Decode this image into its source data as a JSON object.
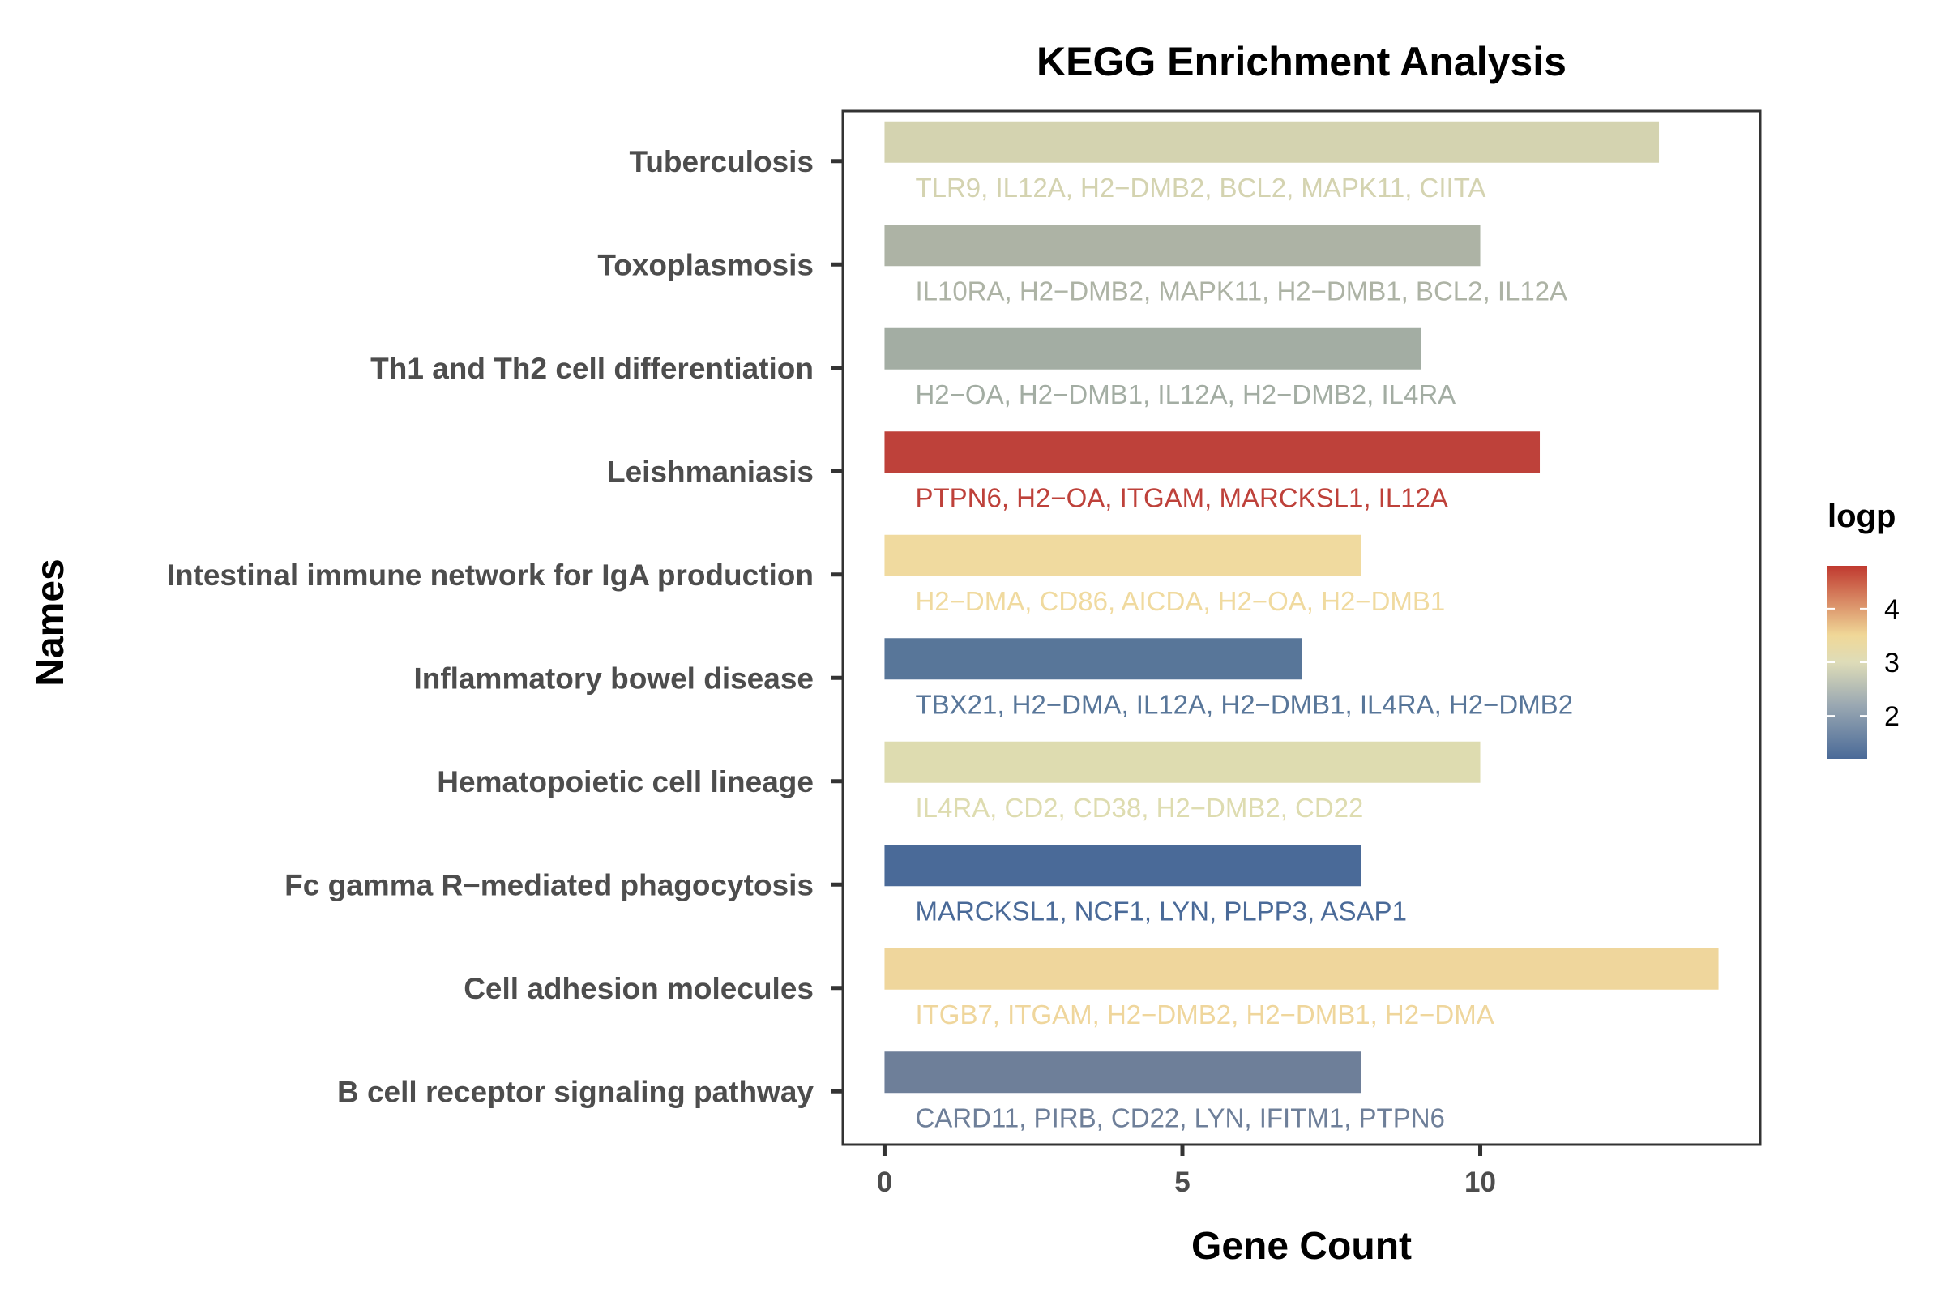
{
  "chart_data": {
    "type": "bar",
    "orientation": "horizontal",
    "title": "KEGG Enrichment Analysis",
    "xlabel": "Gene Count",
    "ylabel": "Names",
    "xlim": [
      -0.7,
      14.7
    ],
    "x_ticks": [
      0,
      5,
      10
    ],
    "grid": false,
    "legend": {
      "title": "logp",
      "position": "right",
      "range": [
        1.2,
        4.8
      ],
      "ticks": [
        2,
        3,
        4
      ],
      "stops": [
        {
          "value": 1.2,
          "color": "#4a6a98"
        },
        {
          "value": 2.2,
          "color": "#9aa8b2"
        },
        {
          "value": 3.0,
          "color": "#dedcb8"
        },
        {
          "value": 3.5,
          "color": "#f0d898"
        },
        {
          "value": 4.8,
          "color": "#c0392f"
        }
      ]
    },
    "bars": [
      {
        "name": "Tuberculosis",
        "value": 13,
        "logp": 3.1,
        "color": "#d4d3b0",
        "genes": "TLR9, IL12A, H2−DMB2, BCL2, MAPK11, CIITA"
      },
      {
        "name": "Toxoplasmosis",
        "value": 10,
        "logp": 2.5,
        "color": "#adb3a5",
        "genes": "IL10RA, H2−DMB2, MAPK11, H2−DMB1, BCL2, IL12A"
      },
      {
        "name": "Th1 and Th2 cell differentiation",
        "value": 9,
        "logp": 2.45,
        "color": "#a3ada3",
        "genes": "H2−OA, H2−DMB1, IL12A, H2−DMB2, IL4RA"
      },
      {
        "name": "Leishmaniasis",
        "value": 11,
        "logp": 4.8,
        "color": "#be413a",
        "genes": "PTPN6, H2−OA, ITGAM, MARCKSL1, IL12A"
      },
      {
        "name": "Intestinal immune network for IgA production",
        "value": 8,
        "logp": 3.4,
        "color": "#f0da9f",
        "genes": "H2−DMA, CD86, AICDA, H2−OA, H2−DMB1"
      },
      {
        "name": "Inflammatory bowel disease",
        "value": 7,
        "logp": 1.3,
        "color": "#587699",
        "genes": "TBX21, H2−DMA, IL12A, H2−DMB1, IL4RA, H2−DMB2"
      },
      {
        "name": "Hematopoietic cell lineage",
        "value": 10,
        "logp": 3.0,
        "color": "#dedcb0",
        "genes": "IL4RA, CD2, CD38, H2−DMB2, CD22"
      },
      {
        "name": "Fc gamma R−mediated phagocytosis",
        "value": 8,
        "logp": 1.2,
        "color": "#4a6a98",
        "genes": "MARCKSL1, NCF1, LYN, PLPP3, ASAP1"
      },
      {
        "name": "Cell adhesion molecules",
        "value": 14,
        "logp": 3.4,
        "color": "#efd69c",
        "genes": "ITGB7, ITGAM, H2−DMB2, H2−DMB1, H2−DMA"
      },
      {
        "name": "B cell receptor signaling pathway",
        "value": 8,
        "logp": 1.6,
        "color": "#6e7f99",
        "genes": "CARD11, PIRB, CD22, LYN, IFITM1, PTPN6"
      }
    ]
  }
}
